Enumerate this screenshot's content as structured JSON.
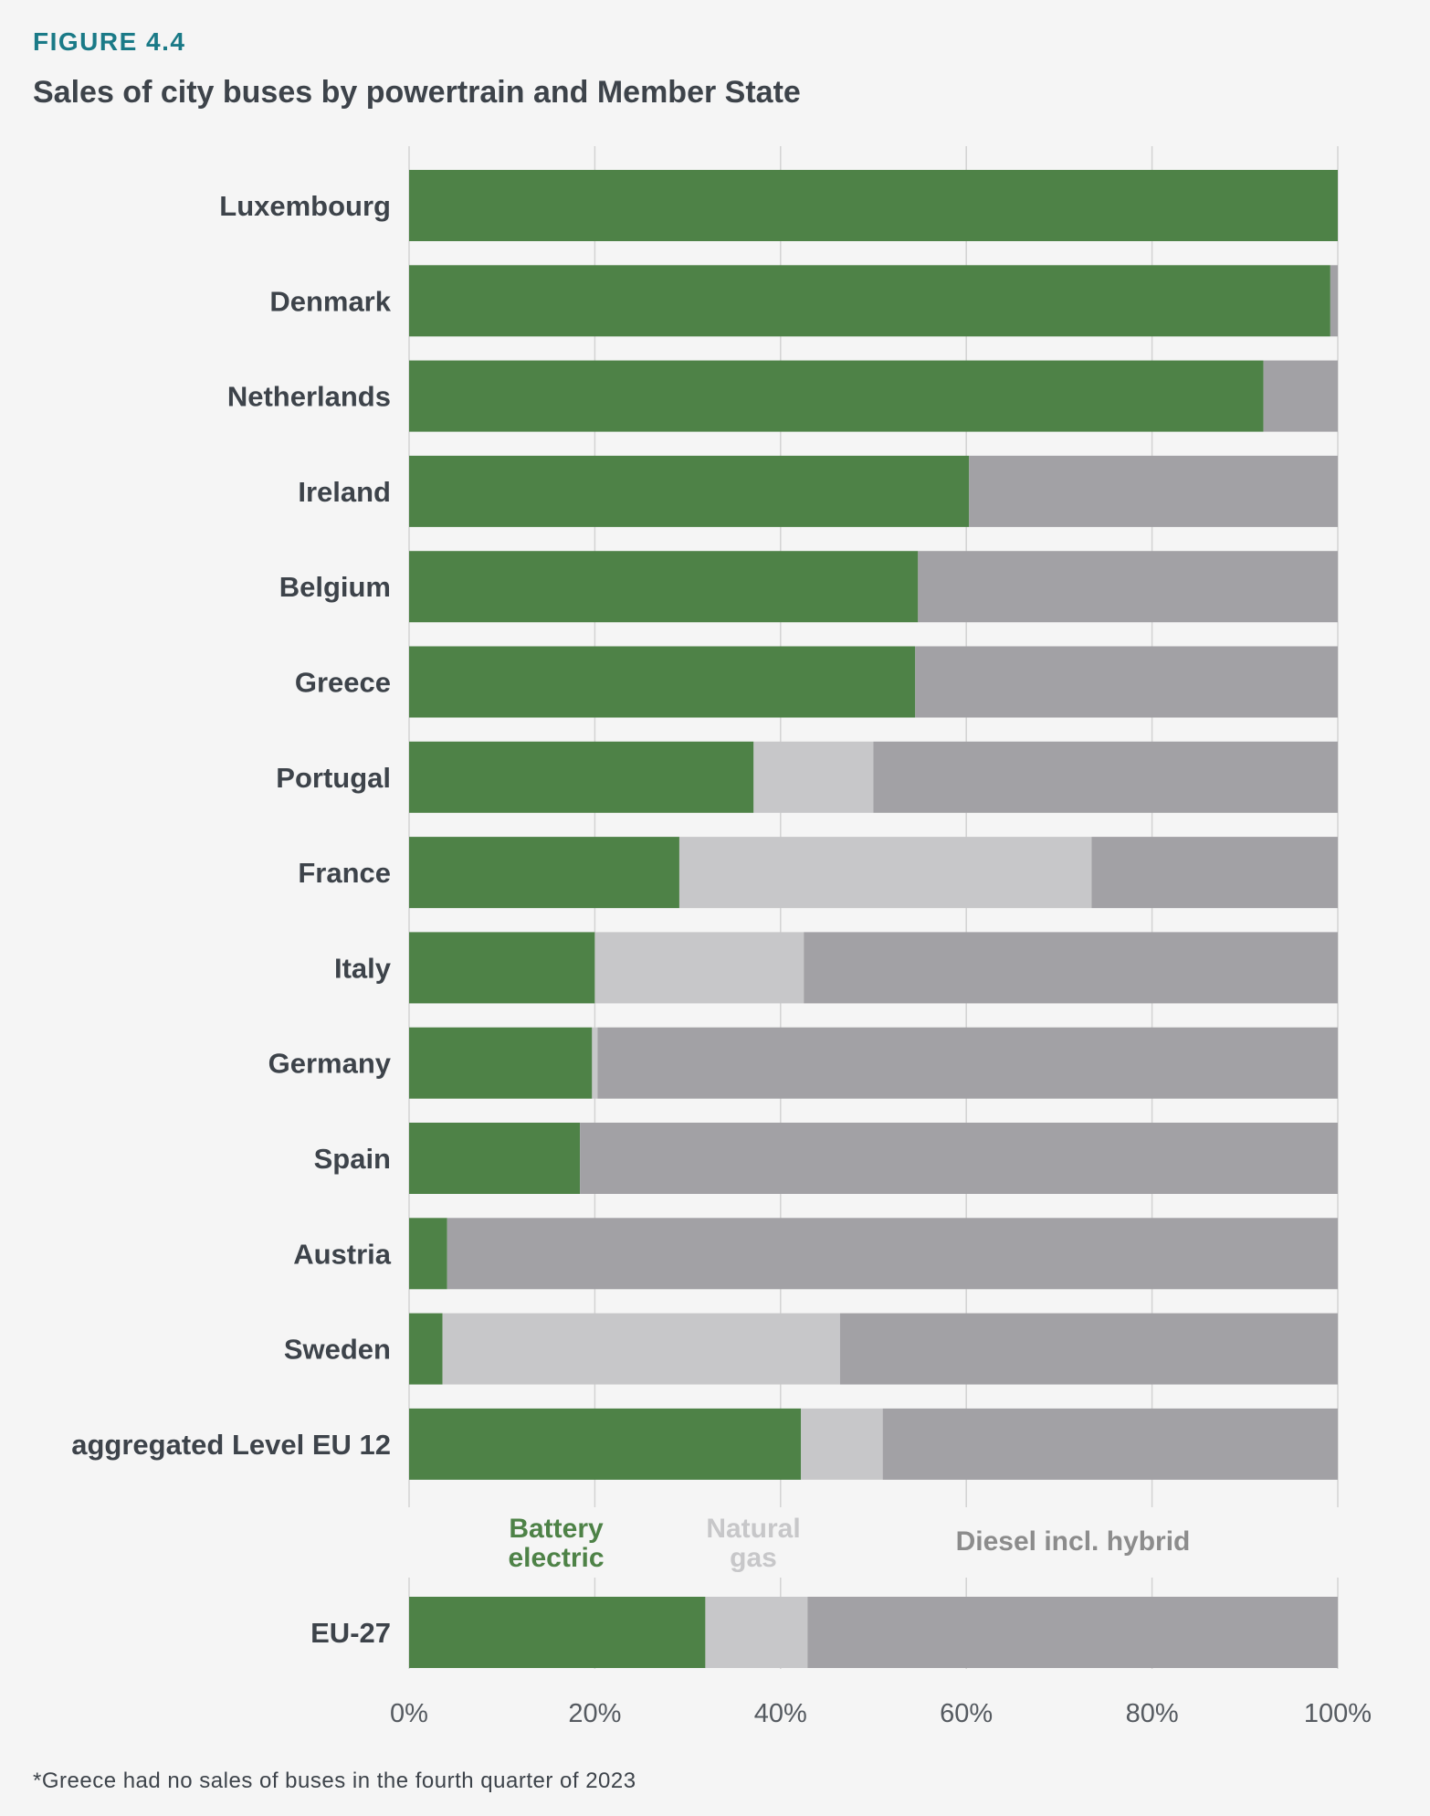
{
  "figure_label": "FIGURE 4.4",
  "title": "Sales of city buses by powertrain and Member State",
  "footnote": "*Greece had no sales of buses in the fourth quarter of 2023",
  "colors": {
    "battery_electric": "#4e8247",
    "natural_gas": "#c7c7c9",
    "diesel": "#a2a1a5",
    "grid": "#d3d3d3",
    "label_text": "#3d434a",
    "tick_text": "#555a60",
    "diesel_legend_text": "#8c8c8c"
  },
  "chart_data": [
    {
      "type": "bar",
      "orientation": "horizontal",
      "stacked": true,
      "categories": [
        "Luxembourg",
        "Denmark",
        "Netherlands",
        "Ireland",
        "Belgium",
        "Greece",
        "Portugal",
        "France",
        "Italy",
        "Germany",
        "Spain",
        "Austria",
        "Sweden",
        "aggregated Level EU 12"
      ],
      "series": [
        {
          "name": "Battery electric",
          "color_key": "battery_electric",
          "values": [
            100,
            99.2,
            92,
            60.3,
            54.8,
            54.5,
            37.1,
            29.1,
            20.0,
            19.7,
            18.4,
            4.1,
            3.6,
            42.2
          ]
        },
        {
          "name": "Natural gas",
          "color_key": "natural_gas",
          "values": [
            0,
            0,
            0,
            0,
            0,
            0,
            12.9,
            44.4,
            22.5,
            0.6,
            0,
            0,
            42.8,
            8.8
          ]
        },
        {
          "name": "Diesel incl. hybrid",
          "color_key": "diesel",
          "values": [
            0,
            0.8,
            8,
            39.7,
            45.2,
            45.5,
            50.0,
            26.5,
            57.5,
            79.7,
            81.6,
            95.9,
            53.6,
            49.0
          ]
        }
      ],
      "xlim": [
        0,
        100
      ],
      "grid": true
    },
    {
      "type": "bar",
      "orientation": "horizontal",
      "stacked": true,
      "categories": [
        "EU-27"
      ],
      "series": [
        {
          "name": "Battery electric",
          "color_key": "battery_electric",
          "values": [
            31.9
          ]
        },
        {
          "name": "Natural gas",
          "color_key": "natural_gas",
          "values": [
            11.0
          ]
        },
        {
          "name": "Diesel incl. hybrid",
          "color_key": "diesel",
          "values": [
            57.1
          ]
        }
      ],
      "xlim": [
        0,
        100
      ],
      "xticks": [
        "0%",
        "20%",
        "40%",
        "60%",
        "80%",
        "100%"
      ],
      "xtick_values": [
        0,
        20,
        40,
        60,
        80,
        100
      ],
      "grid": true
    }
  ],
  "legend": {
    "placement": "between panels",
    "items": [
      {
        "lines": [
          "Battery",
          "electric"
        ],
        "color_key": "battery_electric"
      },
      {
        "lines": [
          "Natural",
          "gas"
        ],
        "color_key": "natural_gas"
      },
      {
        "lines": [
          "Diesel incl. hybrid"
        ],
        "color_key": "diesel_legend_text"
      }
    ]
  }
}
